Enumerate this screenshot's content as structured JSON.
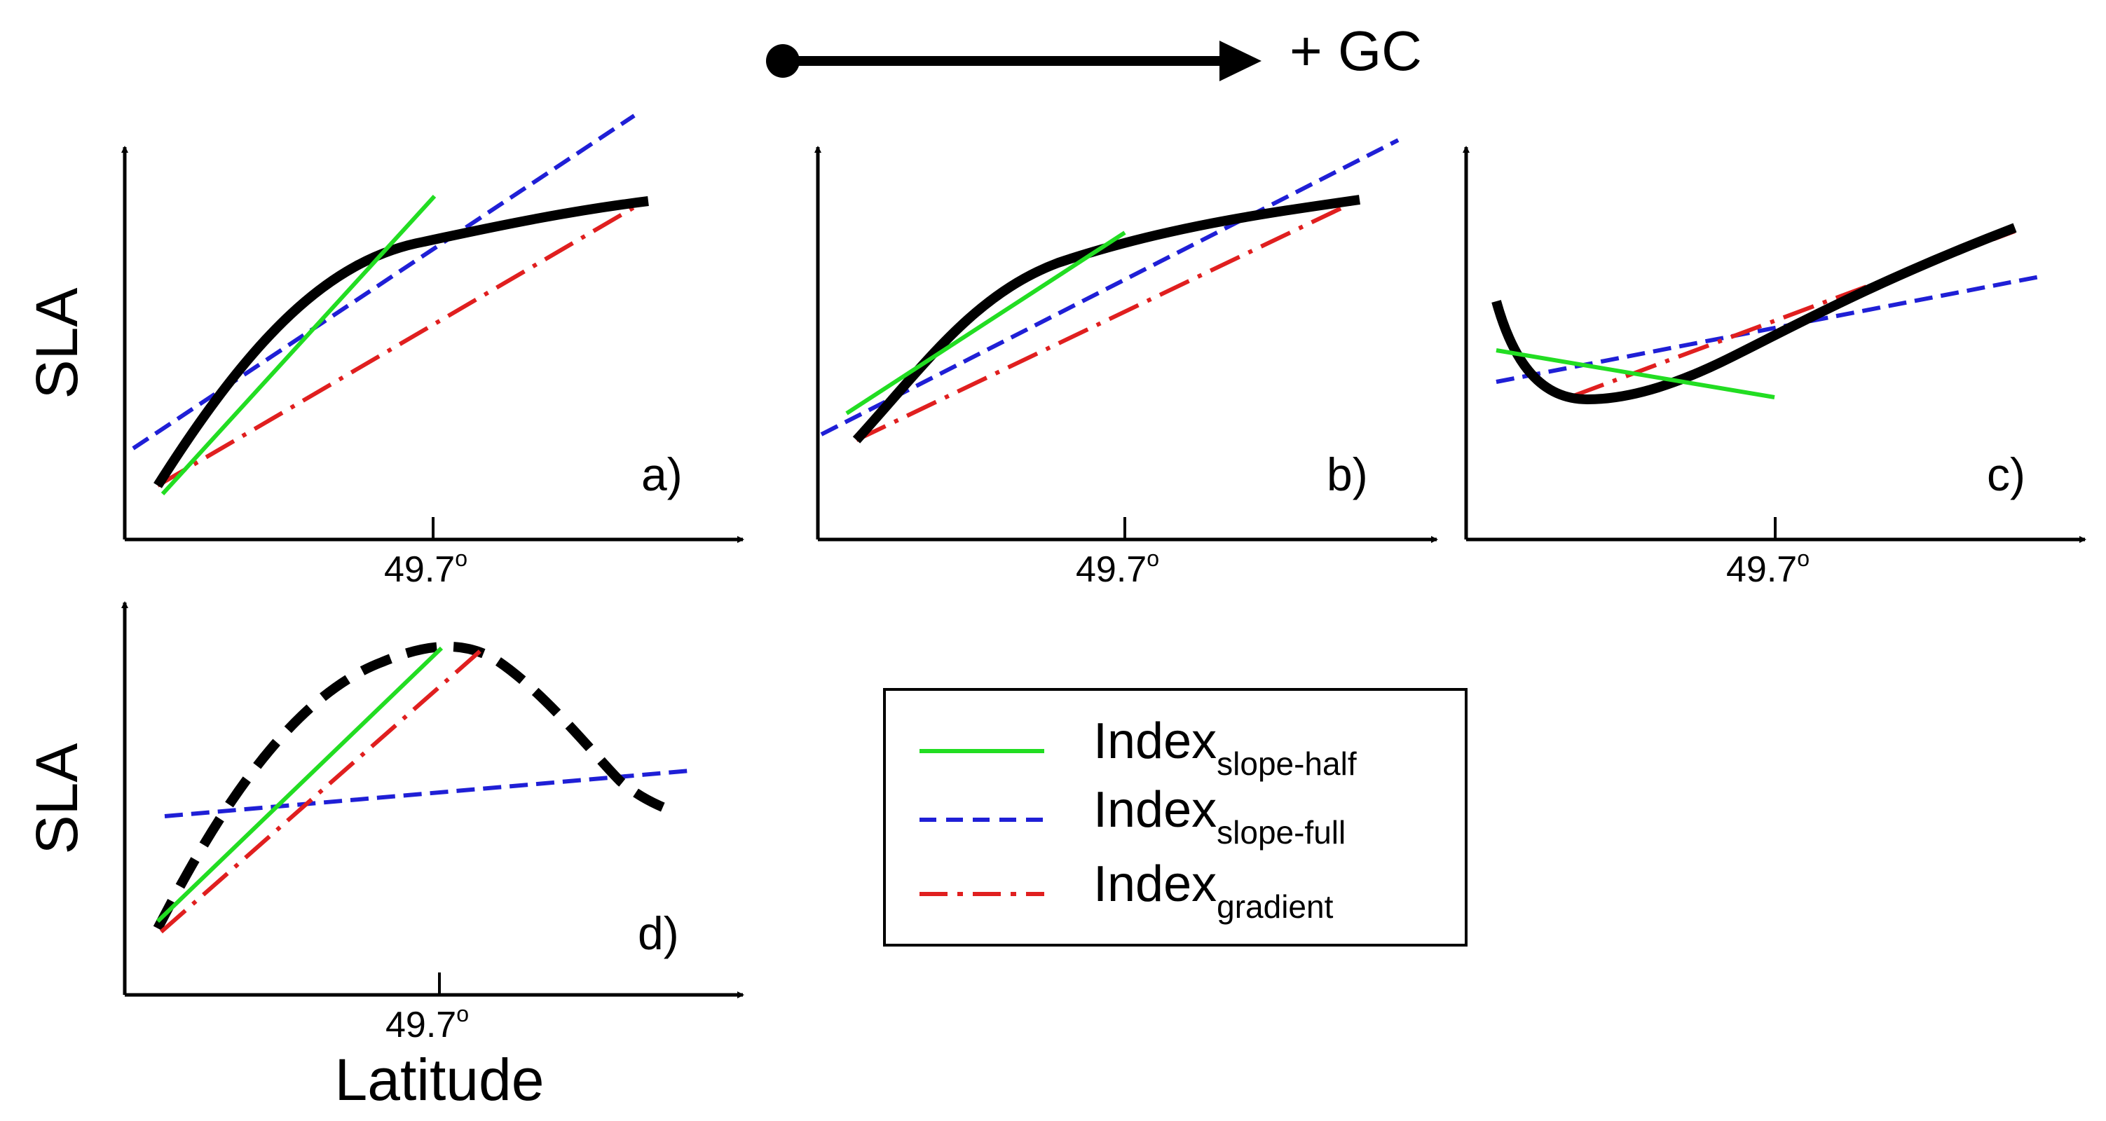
{
  "direction_label": "+ GC",
  "axis_labels": {
    "y": "SLA",
    "x": "Latitude"
  },
  "tick_label": "49.7",
  "degree_symbol": "o",
  "panels": [
    {
      "id": "a",
      "label": "a)"
    },
    {
      "id": "b",
      "label": "b)"
    },
    {
      "id": "c",
      "label": "c)"
    },
    {
      "id": "d",
      "label": "d)"
    }
  ],
  "legend": {
    "items": [
      {
        "text": "Index",
        "subscript": "slope-half",
        "color": "#22dd22",
        "style": "solid"
      },
      {
        "text": "Index",
        "subscript": "slope-full",
        "color": "#1f1fd6",
        "style": "dashed"
      },
      {
        "text": "Index",
        "subscript": "gradient",
        "color": "#e01f1f",
        "style": "dash-dot"
      }
    ]
  },
  "colors": {
    "sla_curve": "#000000",
    "slope_half": "#22dd22",
    "slope_full": "#1f1fd6",
    "gradient": "#e01f1f"
  }
}
